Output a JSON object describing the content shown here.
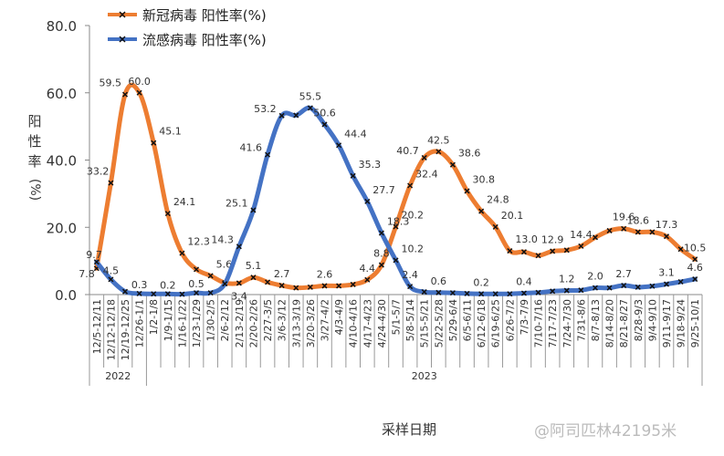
{
  "chart_data": {
    "type": "line",
    "title": "",
    "xlabel": "采样日期",
    "ylabel": "阳性率(%)",
    "ylim": [
      0,
      80
    ],
    "yticks": [
      "0.0",
      "20.0",
      "40.0",
      "60.0",
      "80.0"
    ],
    "grid": false,
    "legend_placement": "top-left",
    "categories": [
      "12/5-12/11",
      "12/12-12/18",
      "12/19-12/25",
      "12/26-1/1",
      "1/2-1/8",
      "1/9-1/15",
      "1/16-1/22",
      "1/23-1/29",
      "1/30-2/5",
      "2/6-2/12",
      "2/13-2/19",
      "2/20-2/26",
      "2/27-3/5",
      "3/6-3/12",
      "3/13-3/19",
      "3/20-3/26",
      "3/27-4/2",
      "4/3-4/9",
      "4/10-4/16",
      "4/17-4/23",
      "4/24-4/30",
      "5/1-5/7",
      "5/8-5/14",
      "5/15-5/21",
      "5/22-5/28",
      "5/29-6/4",
      "6/5-6/11",
      "6/12-6/18",
      "6/19-6/25",
      "6/26-7/2",
      "7/3-7/9",
      "7/10-7/16",
      "7/17-7/23",
      "7/24-7/30",
      "7/31-8/6",
      "8/7-8/13",
      "8/14-8/20",
      "8/21-8/27",
      "8/28-9/3",
      "9/4-9/10",
      "9/11-9/17",
      "9/18-9/24",
      "9/25-10/1"
    ],
    "year_groups": [
      {
        "label": "2022",
        "count": 4
      },
      {
        "label": "2023",
        "count": 39
      }
    ],
    "series": [
      {
        "name": "新冠病毒 阳性率(%)",
        "color": "#ED7D31",
        "values": [
          7.8,
          33.2,
          59.5,
          60.0,
          45.1,
          24.1,
          12.3,
          7.5,
          5.6,
          3.5,
          3.4,
          5.1,
          3.7,
          2.7,
          2.0,
          2.2,
          2.6,
          2.6,
          3.0,
          4.4,
          8.8,
          20.2,
          32.4,
          40.7,
          42.5,
          38.6,
          30.8,
          24.8,
          20.1,
          13.0,
          12.7,
          11.6,
          12.9,
          13.2,
          14.4,
          17.0,
          19.0,
          19.6,
          18.6,
          18.6,
          17.3,
          13.5,
          10.5
        ],
        "labeled_indices": [
          0,
          1,
          2,
          3,
          4,
          5,
          6,
          8,
          10,
          11,
          13,
          16,
          19,
          20,
          21,
          22,
          23,
          24,
          25,
          26,
          27,
          28,
          29,
          32,
          34,
          37,
          38,
          40,
          42
        ]
      },
      {
        "name": "流感病毒 阳性率(%)",
        "color": "#4472C4",
        "values": [
          9.7,
          4.5,
          0.9,
          0.3,
          0.2,
          0.2,
          0.1,
          0.5,
          0.5,
          3.2,
          14.3,
          25.1,
          41.6,
          53.2,
          53.3,
          55.5,
          50.6,
          44.4,
          35.3,
          27.7,
          18.3,
          10.2,
          2.4,
          0.8,
          0.6,
          0.5,
          0.3,
          0.2,
          0.2,
          0.2,
          0.4,
          0.6,
          1.0,
          1.2,
          1.3,
          2.0,
          2.0,
          2.7,
          2.2,
          2.5,
          3.1,
          3.8,
          4.6
        ],
        "labeled_indices": [
          0,
          1,
          3,
          5,
          7,
          10,
          11,
          12,
          13,
          15,
          16,
          17,
          18,
          19,
          20,
          21,
          22,
          24,
          27,
          30,
          33,
          35,
          37,
          40,
          42
        ]
      }
    ]
  },
  "watermark": "@阿司匹林42195米"
}
